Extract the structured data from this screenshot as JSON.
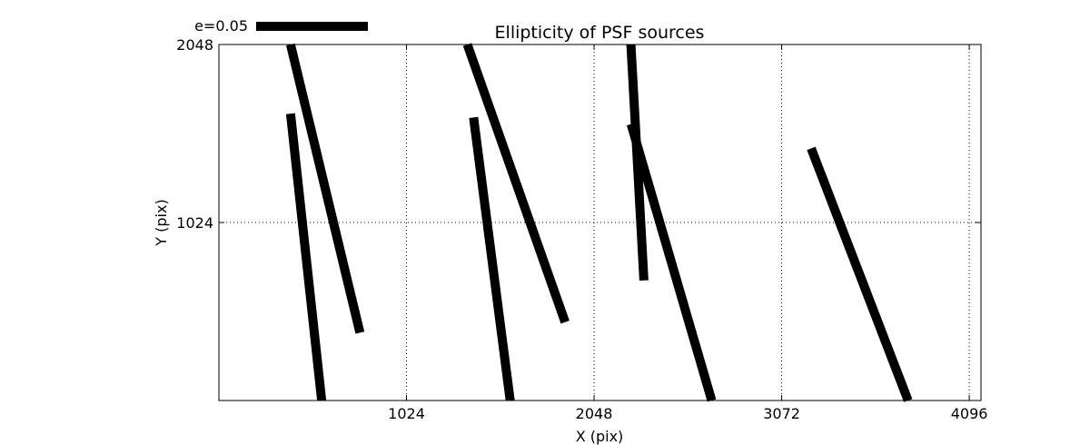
{
  "chart_data": {
    "type": "vector-field",
    "title": "Ellipticity of PSF sources",
    "xlabel": "X (pix)",
    "ylabel": "Y (pix)",
    "xlim": [
      0,
      4160
    ],
    "ylim": [
      0,
      2048
    ],
    "x_ticks": [
      1024,
      2048,
      3072,
      4096
    ],
    "y_ticks": [
      1024,
      2048
    ],
    "x_tick_labels": [
      "1024",
      "2048",
      "3072",
      "4096"
    ],
    "y_tick_labels": [
      "1024",
      "2048"
    ],
    "grid": true,
    "scale_key": {
      "label": "e=0.05",
      "length_pix": 610
    },
    "segments": [
      {
        "x1": 391,
        "y1": 2048,
        "x2": 770,
        "y2": 390
      },
      {
        "x1": 391,
        "y1": 1650,
        "x2": 561,
        "y2": 0
      },
      {
        "x1": 1356,
        "y1": 2048,
        "x2": 1890,
        "y2": 451
      },
      {
        "x1": 1390,
        "y1": 1628,
        "x2": 1590,
        "y2": 0
      },
      {
        "x1": 2249,
        "y1": 2048,
        "x2": 2320,
        "y2": 691
      },
      {
        "x1": 2250,
        "y1": 1590,
        "x2": 2690,
        "y2": 0
      },
      {
        "x1": 3233,
        "y1": 1450,
        "x2": 3762,
        "y2": 0
      }
    ]
  }
}
